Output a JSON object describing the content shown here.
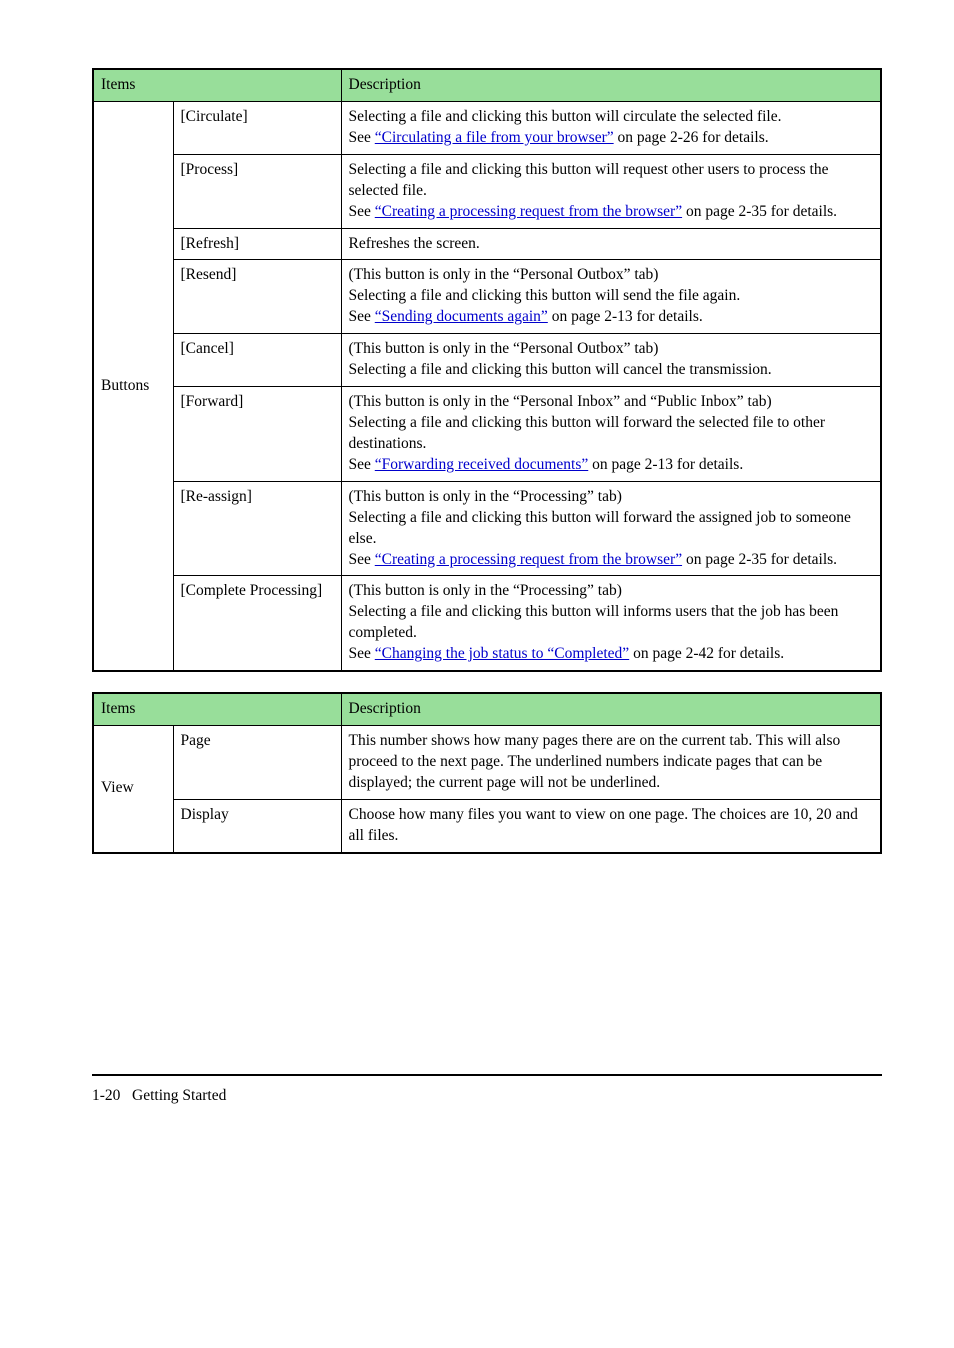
{
  "tables": {
    "buttons": {
      "header": {
        "items": "Items",
        "desc": "Description"
      },
      "group": "Buttons",
      "rows": [
        {
          "item": "[Circulate]",
          "d1": "Selecting a file and clicking this button will circulate the selected file.",
          "d2a": "See ",
          "link": "“Circulating a file from your browser”",
          "d2b": " on page 2-26 for details."
        },
        {
          "item": "[Process]",
          "d1": "Selecting a file and clicking this button will request other users to process the selected file.",
          "d2a": "See ",
          "link": "“Creating a processing request from the browser”",
          "d2b": " on page 2-35 for details."
        },
        {
          "item": "[Refresh]",
          "d1": "Refreshes the screen."
        },
        {
          "item": "[Resend]",
          "d0": "(This button is only in the “Personal Outbox” tab)",
          "d1": "Selecting a file and clicking this button will send the file again.",
          "d2a": "See ",
          "link": "“Sending documents again”",
          "d2b": " on page 2-13 for details."
        },
        {
          "item": "[Cancel]",
          "d0": "(This button is only in the “Personal Outbox” tab)",
          "d1": "Selecting a file and clicking this button will cancel the transmission."
        },
        {
          "item": "[Forward]",
          "d0": "(This button is only in the “Personal Inbox” and “Public Inbox” tab)",
          "d1": "Selecting a file and clicking this button will forward the selected file to other destinations.",
          "d2a": "See ",
          "link": "“Forwarding received documents”",
          "d2b": " on page 2-13 for details."
        },
        {
          "item": "[Re-assign]",
          "d0": "(This button is only in the “Processing” tab)",
          "d1": "Selecting a file and clicking this button will forward the assigned job to someone else.",
          "d2a": "See ",
          "link": "“Creating a processing request from the browser”",
          "d2b": " on page 2-35 for details."
        },
        {
          "item": "[Complete Processing]",
          "d0": "(This button is only in the “Processing” tab)",
          "d1": "Selecting a file and clicking this button will informs users that the job has been completed.",
          "d2a": "See ",
          "link": "“Changing the job status to “Completed”",
          "d2b": " on page 2-42 for details."
        }
      ]
    },
    "view": {
      "header": {
        "items": "Items",
        "desc": "Description"
      },
      "group": "View",
      "rows": [
        {
          "item": "Page",
          "d1": "This number shows how many pages there are on the current tab. This will also proceed to the next page. The underlined numbers indicate pages that can be displayed; the current page will not be underlined."
        },
        {
          "item": "Display",
          "d1": "Choose how many files you want to view on one page. The choices are 10, 20 and all files."
        }
      ]
    }
  },
  "footer": {
    "page": "1-20",
    "section": "Getting Started"
  }
}
